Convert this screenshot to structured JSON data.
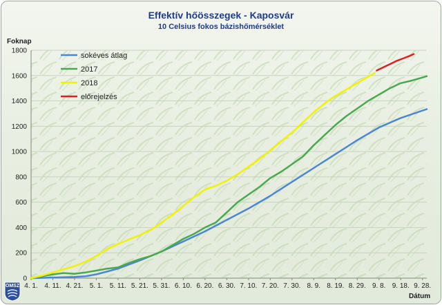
{
  "chart_data": {
    "type": "line",
    "title": "Effektív hőösszegek - Kaposvár",
    "subtitle": "10 Celsius fokos bázishőmérséklet",
    "ylabel": "Foknap",
    "xlabel": "Dátum",
    "ylim": [
      0,
      1800
    ],
    "yticks": [
      0,
      200,
      400,
      600,
      800,
      1000,
      1200,
      1400,
      1600,
      1800
    ],
    "xlim": [
      0,
      182
    ],
    "xticks": [
      {
        "day": 0,
        "label": "4. 1."
      },
      {
        "day": 10,
        "label": "4. 11."
      },
      {
        "day": 20,
        "label": "4. 21."
      },
      {
        "day": 30,
        "label": "5. 1."
      },
      {
        "day": 40,
        "label": "5. 11."
      },
      {
        "day": 50,
        "label": "5. 21."
      },
      {
        "day": 60,
        "label": "5. 31."
      },
      {
        "day": 70,
        "label": "6. 10."
      },
      {
        "day": 80,
        "label": "6. 20."
      },
      {
        "day": 90,
        "label": "6. 30."
      },
      {
        "day": 100,
        "label": "7. 10."
      },
      {
        "day": 110,
        "label": "7. 20."
      },
      {
        "day": 120,
        "label": "7. 30."
      },
      {
        "day": 130,
        "label": "8. 9."
      },
      {
        "day": 140,
        "label": "8. 19."
      },
      {
        "day": 150,
        "label": "8. 29."
      },
      {
        "day": 160,
        "label": "9. 8."
      },
      {
        "day": 170,
        "label": "9. 18."
      },
      {
        "day": 180,
        "label": "9. 28."
      }
    ],
    "grid": true,
    "legend_position": "top-left",
    "series": [
      {
        "name": "sokéves átlag",
        "color": "#4a86d4",
        "points": [
          [
            0,
            0
          ],
          [
            10,
            5
          ],
          [
            20,
            10
          ],
          [
            25,
            15
          ],
          [
            30,
            30
          ],
          [
            40,
            75
          ],
          [
            50,
            140
          ],
          [
            60,
            210
          ],
          [
            70,
            290
          ],
          [
            80,
            370
          ],
          [
            90,
            460
          ],
          [
            100,
            550
          ],
          [
            110,
            650
          ],
          [
            120,
            760
          ],
          [
            130,
            870
          ],
          [
            140,
            980
          ],
          [
            150,
            1090
          ],
          [
            160,
            1190
          ],
          [
            170,
            1265
          ],
          [
            182,
            1335
          ]
        ]
      },
      {
        "name": "2017",
        "color": "#4aa94e",
        "points": [
          [
            0,
            0
          ],
          [
            10,
            30
          ],
          [
            15,
            40
          ],
          [
            20,
            35
          ],
          [
            25,
            45
          ],
          [
            30,
            60
          ],
          [
            35,
            75
          ],
          [
            40,
            85
          ],
          [
            45,
            120
          ],
          [
            50,
            150
          ],
          [
            55,
            175
          ],
          [
            60,
            210
          ],
          [
            65,
            260
          ],
          [
            70,
            310
          ],
          [
            75,
            350
          ],
          [
            80,
            400
          ],
          [
            85,
            440
          ],
          [
            90,
            520
          ],
          [
            95,
            600
          ],
          [
            100,
            660
          ],
          [
            105,
            720
          ],
          [
            110,
            790
          ],
          [
            115,
            840
          ],
          [
            120,
            900
          ],
          [
            125,
            960
          ],
          [
            130,
            1050
          ],
          [
            135,
            1130
          ],
          [
            140,
            1210
          ],
          [
            145,
            1280
          ],
          [
            150,
            1340
          ],
          [
            155,
            1400
          ],
          [
            160,
            1450
          ],
          [
            165,
            1500
          ],
          [
            170,
            1540
          ],
          [
            175,
            1560
          ],
          [
            182,
            1595
          ]
        ]
      },
      {
        "name": "2018",
        "color": "#f2f200",
        "points": [
          [
            0,
            0
          ],
          [
            5,
            20
          ],
          [
            10,
            45
          ],
          [
            15,
            70
          ],
          [
            20,
            95
          ],
          [
            25,
            130
          ],
          [
            30,
            175
          ],
          [
            35,
            230
          ],
          [
            40,
            270
          ],
          [
            45,
            305
          ],
          [
            50,
            340
          ],
          [
            55,
            380
          ],
          [
            60,
            440
          ],
          [
            65,
            500
          ],
          [
            70,
            570
          ],
          [
            75,
            640
          ],
          [
            80,
            700
          ],
          [
            85,
            730
          ],
          [
            90,
            770
          ],
          [
            95,
            820
          ],
          [
            100,
            880
          ],
          [
            105,
            940
          ],
          [
            110,
            1010
          ],
          [
            115,
            1080
          ],
          [
            120,
            1150
          ],
          [
            125,
            1230
          ],
          [
            130,
            1310
          ],
          [
            135,
            1380
          ],
          [
            140,
            1440
          ],
          [
            145,
            1490
          ],
          [
            150,
            1540
          ],
          [
            155,
            1590
          ],
          [
            158,
            1620
          ]
        ]
      },
      {
        "name": "előrejelzés",
        "color": "#e02020",
        "points": [
          [
            159,
            1640
          ],
          [
            162,
            1665
          ],
          [
            165,
            1690
          ],
          [
            168,
            1715
          ],
          [
            171,
            1735
          ],
          [
            174,
            1755
          ],
          [
            176,
            1770
          ]
        ]
      }
    ]
  },
  "logo": {
    "label": "OMSZ"
  }
}
